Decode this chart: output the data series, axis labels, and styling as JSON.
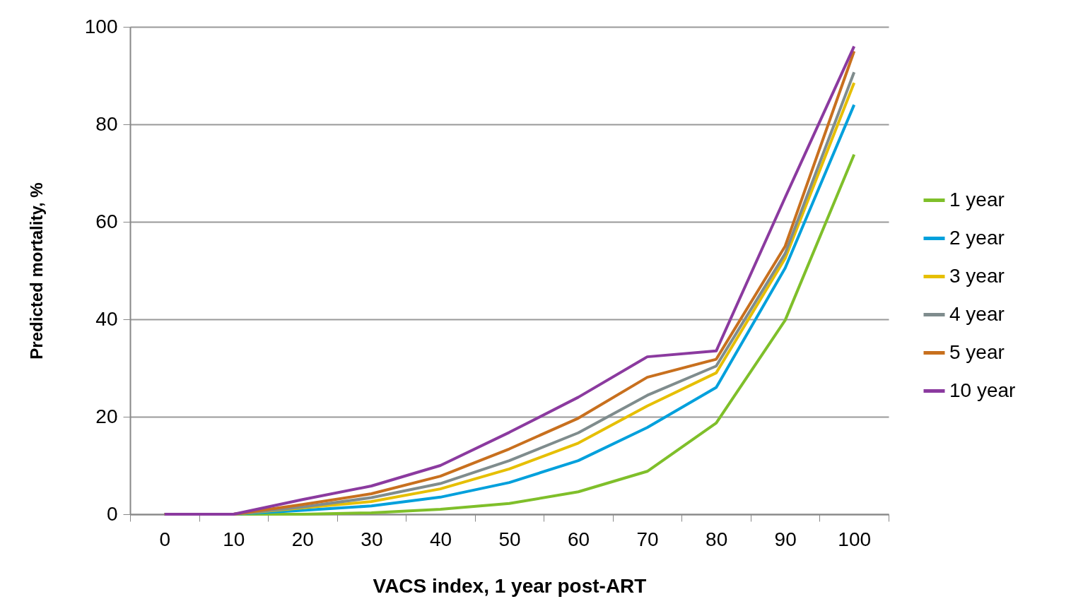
{
  "chart_data": {
    "type": "line",
    "xlabel": "VACS index, 1 year post-ART",
    "ylabel": "Predicted  mortality, %",
    "categories": [
      "0",
      "10",
      "20",
      "30",
      "40",
      "50",
      "60",
      "70",
      "80",
      "90",
      "100"
    ],
    "series": [
      {
        "name": "1 year",
        "color": "#7fbf2a",
        "values": [
          0,
          0,
          0,
          0.3,
          1,
          2.2,
          4.6,
          8.8,
          18.7,
          39.8,
          73.8
        ]
      },
      {
        "name": "2 year",
        "color": "#00a0dc",
        "values": [
          0,
          0,
          0.8,
          1.7,
          3.5,
          6.5,
          11,
          17.8,
          26,
          50.5,
          84
        ]
      },
      {
        "name": "3 year",
        "color": "#e6bf00",
        "values": [
          0,
          0,
          1.3,
          2.6,
          5.2,
          9.3,
          14.6,
          22.2,
          29,
          52.5,
          88.5
        ]
      },
      {
        "name": "4 year",
        "color": "#7f8c8d",
        "values": [
          0,
          0,
          1.5,
          3.4,
          6.3,
          11,
          16.7,
          24.4,
          30.4,
          53.5,
          90.7
        ]
      },
      {
        "name": "5 year",
        "color": "#c8701e",
        "values": [
          0,
          0,
          2,
          4.2,
          7.8,
          13.4,
          19.7,
          28.1,
          31.8,
          55,
          95
        ]
      },
      {
        "name": "10 year",
        "color": "#8b3a9f",
        "values": [
          0,
          0,
          3,
          5.8,
          10,
          16.8,
          24,
          32.3,
          33.5,
          65,
          96
        ]
      }
    ],
    "ylim": [
      0,
      100
    ],
    "yticks": [
      0,
      20,
      40,
      60,
      80,
      100
    ],
    "grid": "y",
    "legend": "right",
    "marker": "none",
    "line_style": "solid"
  }
}
